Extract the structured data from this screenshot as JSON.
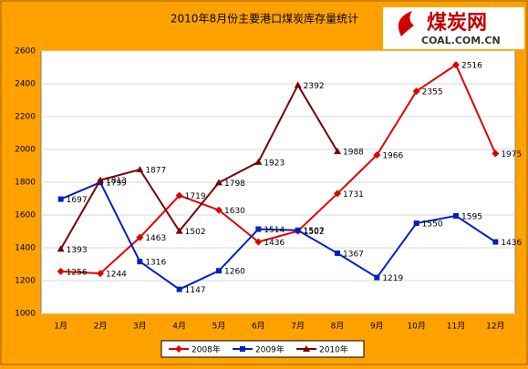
{
  "logo": {
    "name": "煤炭网",
    "url": "COAL.COM.CN"
  },
  "chart_data": {
    "type": "line",
    "title": "2010年8月份主要港口煤炭库存量统计",
    "categories": [
      "1月",
      "2月",
      "3月",
      "4月",
      "5月",
      "6月",
      "7月",
      "8月",
      "9月",
      "10月",
      "11月",
      "12月"
    ],
    "series": [
      {
        "name": "2008年",
        "color": "#e00000",
        "marker": "diamond",
        "values": [
          1256,
          1244,
          1463,
          1719,
          1630,
          1436,
          1502,
          1731,
          1966,
          2355,
          2516,
          1975
        ]
      },
      {
        "name": "2009年",
        "color": "#0020c0",
        "marker": "square",
        "values": [
          1697,
          1799,
          1316,
          1147,
          1260,
          1514,
          1507,
          1367,
          1219,
          1550,
          1595,
          1436
        ]
      },
      {
        "name": "2010年",
        "color": "#7a0000",
        "marker": "triangle",
        "values": [
          1393,
          1813,
          1877,
          1502,
          1798,
          1923,
          2392,
          1988,
          null,
          null,
          null,
          null
        ]
      }
    ],
    "ylim": [
      1000,
      2600
    ],
    "yticks": [
      1000,
      1200,
      1400,
      1600,
      1800,
      2000,
      2200,
      2400,
      2600
    ],
    "grid": true,
    "legend": "bottom"
  }
}
